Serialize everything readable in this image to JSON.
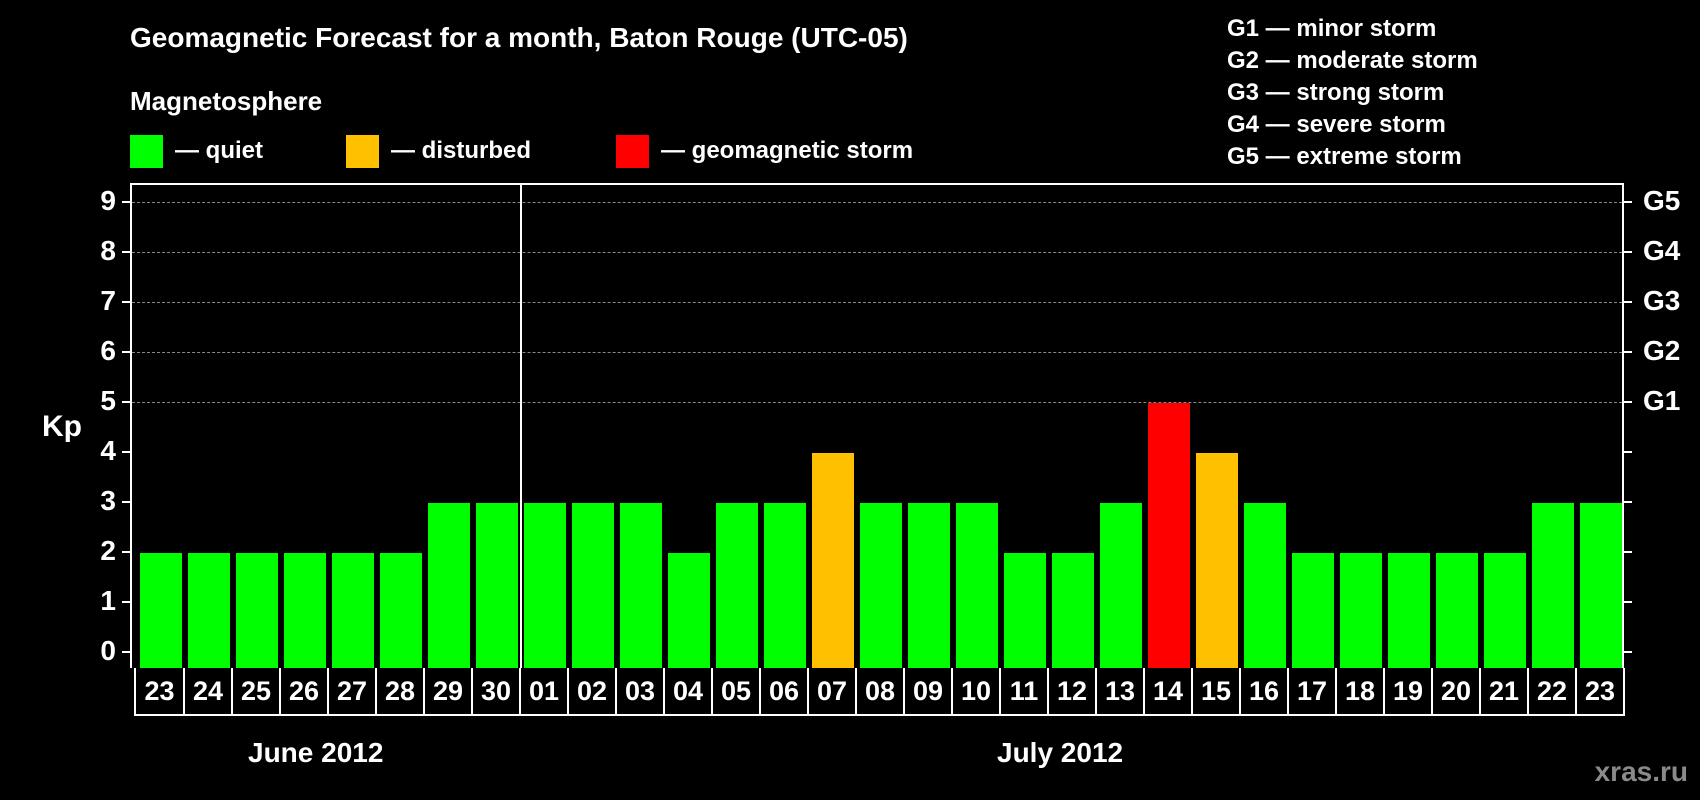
{
  "header": {
    "title": "Geomagnetic Forecast for a month, Baton Rouge (UTC-05)",
    "subtitle": "Magnetosphere"
  },
  "legend": [
    {
      "label": "— quiet",
      "color": "#00ff00"
    },
    {
      "label": "— disturbed",
      "color": "#ffc000"
    },
    {
      "label": "— geomagnetic storm",
      "color": "#ff0000"
    }
  ],
  "g_scale": [
    "G1 — minor storm",
    "G2 — moderate storm",
    "G3 — strong storm",
    "G4 — severe storm",
    "G5 — extreme storm"
  ],
  "axis": {
    "ylabel": "Kp",
    "y_ticks": [
      "0",
      "1",
      "2",
      "3",
      "4",
      "5",
      "6",
      "7",
      "8",
      "9"
    ],
    "right_labels": [
      {
        "value": 5,
        "label": "G1"
      },
      {
        "value": 6,
        "label": "G2"
      },
      {
        "value": 7,
        "label": "G3"
      },
      {
        "value": 8,
        "label": "G4"
      },
      {
        "value": 9,
        "label": "G5"
      }
    ]
  },
  "months": {
    "june": "June 2012",
    "july": "July 2012"
  },
  "watermark": "xras.ru",
  "colors": {
    "quiet": "#00ff00",
    "disturbed": "#ffc000",
    "storm": "#ff0000",
    "grid": "#888888"
  },
  "chart_data": {
    "type": "bar",
    "title": "Geomagnetic Forecast for a month, Baton Rouge (UTC-05)",
    "xlabel": "",
    "ylabel": "Kp",
    "ylim": [
      0,
      9
    ],
    "grid": "dashed at Kp 5–9",
    "categories": [
      "23",
      "24",
      "25",
      "26",
      "27",
      "28",
      "29",
      "30",
      "01",
      "02",
      "03",
      "04",
      "05",
      "06",
      "07",
      "08",
      "09",
      "10",
      "11",
      "12",
      "13",
      "14",
      "15",
      "16",
      "17",
      "18",
      "19",
      "20",
      "21",
      "22",
      "23"
    ],
    "months": [
      "June 2012 (23–30)",
      "July 2012 (01–23)"
    ],
    "values": [
      2,
      2,
      2,
      2,
      2,
      2,
      3,
      3,
      3,
      3,
      3,
      2,
      3,
      3,
      4,
      3,
      3,
      3,
      2,
      2,
      3,
      5,
      4,
      3,
      2,
      2,
      2,
      2,
      2,
      3,
      3
    ],
    "status": [
      "quiet",
      "quiet",
      "quiet",
      "quiet",
      "quiet",
      "quiet",
      "quiet",
      "quiet",
      "quiet",
      "quiet",
      "quiet",
      "quiet",
      "quiet",
      "quiet",
      "disturbed",
      "quiet",
      "quiet",
      "quiet",
      "quiet",
      "quiet",
      "quiet",
      "storm",
      "disturbed",
      "quiet",
      "quiet",
      "quiet",
      "quiet",
      "quiet",
      "quiet",
      "quiet",
      "quiet"
    ],
    "legend": [
      "quiet",
      "disturbed",
      "geomagnetic storm"
    ]
  }
}
